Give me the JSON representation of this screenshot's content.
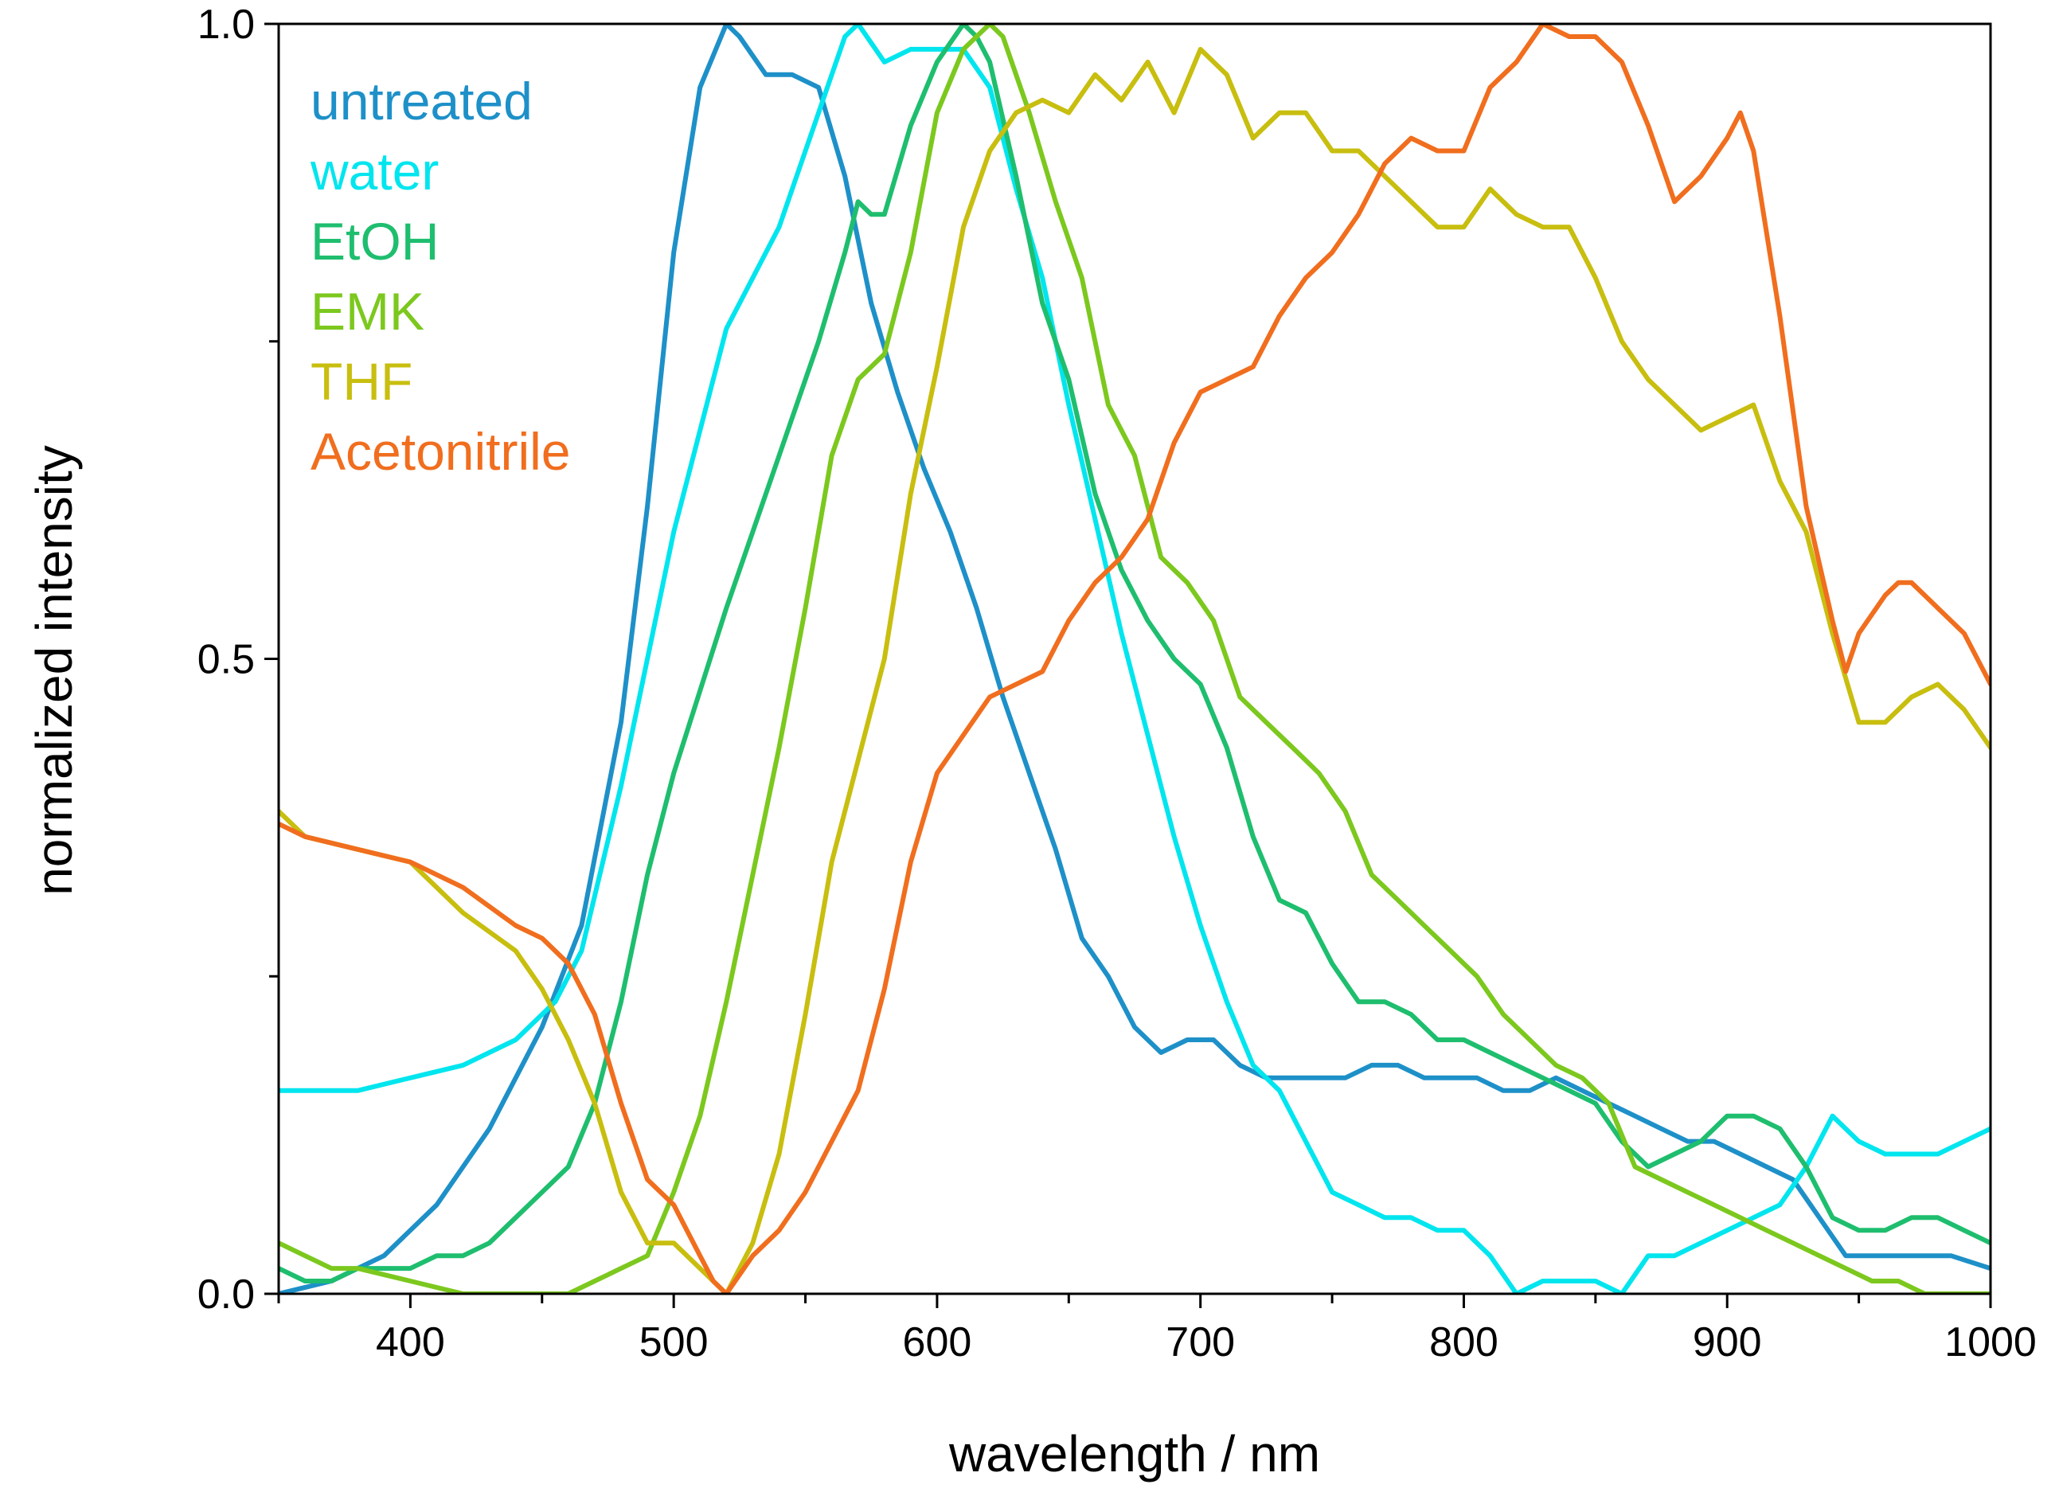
{
  "chart_data": {
    "type": "line",
    "title": "",
    "xlabel": "wavelength / nm",
    "ylabel": "normalized intensity",
    "xlim": [
      350,
      1000
    ],
    "ylim": [
      0.0,
      1.0
    ],
    "x_ticks": [
      400,
      500,
      600,
      700,
      800,
      900,
      1000
    ],
    "x_minor_ticks": [
      350,
      450,
      550,
      650,
      750,
      850,
      950
    ],
    "y_ticks": [
      0.0,
      0.5,
      1.0
    ],
    "y_tick_labels": [
      "0.0",
      "0.5",
      "1.0"
    ],
    "y_minor_ticks": [
      0.25,
      0.75
    ],
    "grid": false,
    "legend_position": "top-left",
    "series": [
      {
        "name": "untreated",
        "color": "#1E90C8",
        "x": [
          350,
          370,
          390,
          410,
          430,
          450,
          465,
          480,
          490,
          500,
          510,
          520,
          525,
          535,
          545,
          555,
          565,
          575,
          585,
          595,
          605,
          615,
          625,
          635,
          645,
          655,
          665,
          675,
          685,
          695,
          705,
          715,
          725,
          735,
          745,
          755,
          765,
          775,
          785,
          795,
          805,
          815,
          825,
          835,
          845,
          855,
          865,
          875,
          885,
          895,
          905,
          915,
          925,
          935,
          945,
          955,
          965,
          975,
          985,
          1000
        ],
        "values": [
          0.0,
          0.01,
          0.03,
          0.07,
          0.13,
          0.21,
          0.29,
          0.45,
          0.62,
          0.82,
          0.95,
          1.0,
          0.99,
          0.96,
          0.96,
          0.95,
          0.88,
          0.78,
          0.71,
          0.65,
          0.6,
          0.54,
          0.47,
          0.41,
          0.35,
          0.28,
          0.25,
          0.21,
          0.19,
          0.2,
          0.2,
          0.18,
          0.17,
          0.17,
          0.17,
          0.17,
          0.18,
          0.18,
          0.17,
          0.17,
          0.17,
          0.16,
          0.16,
          0.17,
          0.16,
          0.15,
          0.14,
          0.13,
          0.12,
          0.12,
          0.11,
          0.1,
          0.09,
          0.06,
          0.03,
          0.03,
          0.03,
          0.03,
          0.03,
          0.02
        ]
      },
      {
        "name": "water",
        "color": "#00E5EE",
        "x": [
          350,
          360,
          370,
          380,
          400,
          420,
          440,
          455,
          465,
          480,
          500,
          520,
          540,
          555,
          565,
          570,
          580,
          590,
          600,
          610,
          620,
          630,
          640,
          650,
          660,
          670,
          680,
          690,
          700,
          710,
          720,
          730,
          740,
          750,
          760,
          770,
          780,
          790,
          800,
          810,
          820,
          830,
          840,
          850,
          860,
          870,
          880,
          890,
          900,
          910,
          920,
          930,
          940,
          950,
          960,
          970,
          980,
          990,
          1000
        ],
        "values": [
          0.16,
          0.16,
          0.16,
          0.16,
          0.17,
          0.18,
          0.2,
          0.23,
          0.27,
          0.4,
          0.6,
          0.76,
          0.84,
          0.93,
          0.99,
          1.0,
          0.97,
          0.98,
          0.98,
          0.98,
          0.95,
          0.87,
          0.8,
          0.7,
          0.61,
          0.52,
          0.44,
          0.36,
          0.29,
          0.23,
          0.18,
          0.16,
          0.12,
          0.08,
          0.07,
          0.06,
          0.06,
          0.05,
          0.05,
          0.03,
          0.0,
          0.01,
          0.01,
          0.01,
          0.0,
          0.03,
          0.03,
          0.04,
          0.05,
          0.06,
          0.07,
          0.1,
          0.14,
          0.12,
          0.11,
          0.11,
          0.11,
          0.12,
          0.13
        ]
      },
      {
        "name": "EtOH",
        "color": "#1EBE6E",
        "x": [
          350,
          360,
          370,
          380,
          390,
          400,
          410,
          420,
          430,
          440,
          450,
          460,
          470,
          480,
          490,
          500,
          520,
          540,
          555,
          565,
          570,
          575,
          580,
          590,
          600,
          610,
          615,
          620,
          630,
          640,
          650,
          660,
          670,
          680,
          690,
          700,
          710,
          720,
          730,
          740,
          750,
          760,
          770,
          780,
          790,
          800,
          810,
          820,
          830,
          840,
          850,
          860,
          870,
          880,
          890,
          900,
          910,
          920,
          930,
          940,
          950,
          960,
          970,
          980,
          990,
          1000
        ],
        "values": [
          0.02,
          0.01,
          0.01,
          0.02,
          0.02,
          0.02,
          0.03,
          0.03,
          0.04,
          0.06,
          0.08,
          0.1,
          0.15,
          0.23,
          0.33,
          0.41,
          0.54,
          0.66,
          0.75,
          0.82,
          0.86,
          0.85,
          0.85,
          0.92,
          0.97,
          1.0,
          0.99,
          0.97,
          0.88,
          0.78,
          0.72,
          0.63,
          0.57,
          0.53,
          0.5,
          0.48,
          0.43,
          0.36,
          0.31,
          0.3,
          0.26,
          0.23,
          0.23,
          0.22,
          0.2,
          0.2,
          0.19,
          0.18,
          0.17,
          0.16,
          0.15,
          0.12,
          0.1,
          0.11,
          0.12,
          0.14,
          0.14,
          0.13,
          0.1,
          0.06,
          0.05,
          0.05,
          0.06,
          0.06,
          0.05,
          0.04
        ]
      },
      {
        "name": "EMK",
        "color": "#7CC81E",
        "x": [
          350,
          360,
          370,
          380,
          400,
          420,
          440,
          460,
          470,
          480,
          490,
          500,
          510,
          520,
          530,
          540,
          550,
          560,
          570,
          580,
          590,
          600,
          610,
          620,
          625,
          635,
          645,
          655,
          665,
          675,
          685,
          695,
          705,
          715,
          725,
          735,
          745,
          755,
          765,
          775,
          785,
          795,
          805,
          815,
          825,
          835,
          845,
          855,
          865,
          875,
          885,
          895,
          905,
          915,
          925,
          935,
          945,
          955,
          965,
          975,
          985,
          1000
        ],
        "values": [
          0.04,
          0.03,
          0.02,
          0.02,
          0.01,
          0.0,
          0.0,
          0.0,
          0.01,
          0.02,
          0.03,
          0.08,
          0.14,
          0.23,
          0.33,
          0.43,
          0.54,
          0.66,
          0.72,
          0.74,
          0.82,
          0.93,
          0.98,
          1.0,
          0.99,
          0.93,
          0.86,
          0.8,
          0.7,
          0.66,
          0.58,
          0.56,
          0.53,
          0.47,
          0.45,
          0.43,
          0.41,
          0.38,
          0.33,
          0.31,
          0.29,
          0.27,
          0.25,
          0.22,
          0.2,
          0.18,
          0.17,
          0.15,
          0.1,
          0.09,
          0.08,
          0.07,
          0.06,
          0.05,
          0.04,
          0.03,
          0.02,
          0.01,
          0.01,
          0.0,
          0.0,
          0.0
        ]
      },
      {
        "name": "THF",
        "color": "#C8BE0F",
        "x": [
          350,
          360,
          380,
          400,
          420,
          440,
          450,
          460,
          470,
          480,
          490,
          500,
          510,
          520,
          530,
          540,
          550,
          560,
          570,
          580,
          590,
          600,
          610,
          620,
          630,
          640,
          650,
          660,
          670,
          680,
          690,
          700,
          710,
          720,
          730,
          740,
          750,
          760,
          770,
          780,
          790,
          800,
          810,
          820,
          830,
          840,
          850,
          860,
          870,
          880,
          890,
          900,
          910,
          920,
          930,
          940,
          950,
          960,
          970,
          980,
          990,
          1000
        ],
        "values": [
          0.38,
          0.36,
          0.35,
          0.34,
          0.3,
          0.27,
          0.24,
          0.2,
          0.15,
          0.08,
          0.04,
          0.04,
          0.02,
          0.0,
          0.04,
          0.11,
          0.22,
          0.34,
          0.42,
          0.5,
          0.63,
          0.73,
          0.84,
          0.9,
          0.93,
          0.94,
          0.93,
          0.96,
          0.94,
          0.97,
          0.93,
          0.98,
          0.96,
          0.91,
          0.93,
          0.93,
          0.9,
          0.9,
          0.88,
          0.86,
          0.84,
          0.84,
          0.87,
          0.85,
          0.84,
          0.84,
          0.8,
          0.75,
          0.72,
          0.7,
          0.68,
          0.69,
          0.7,
          0.64,
          0.6,
          0.52,
          0.45,
          0.45,
          0.47,
          0.48,
          0.46,
          0.43
        ]
      },
      {
        "name": "Acetonitrile",
        "color": "#F06E1E",
        "x": [
          350,
          360,
          380,
          400,
          420,
          440,
          450,
          460,
          470,
          480,
          490,
          500,
          510,
          515,
          520,
          530,
          540,
          550,
          560,
          570,
          580,
          590,
          600,
          610,
          620,
          630,
          640,
          650,
          660,
          670,
          680,
          690,
          700,
          710,
          720,
          730,
          740,
          750,
          760,
          770,
          780,
          790,
          800,
          810,
          820,
          830,
          840,
          850,
          860,
          870,
          880,
          890,
          900,
          905,
          910,
          920,
          930,
          940,
          945,
          950,
          960,
          965,
          970,
          980,
          990,
          1000
        ],
        "values": [
          0.37,
          0.36,
          0.35,
          0.34,
          0.32,
          0.29,
          0.28,
          0.26,
          0.22,
          0.15,
          0.09,
          0.07,
          0.03,
          0.01,
          0.0,
          0.03,
          0.05,
          0.08,
          0.12,
          0.16,
          0.24,
          0.34,
          0.41,
          0.44,
          0.47,
          0.48,
          0.49,
          0.53,
          0.56,
          0.58,
          0.61,
          0.67,
          0.71,
          0.72,
          0.73,
          0.77,
          0.8,
          0.82,
          0.85,
          0.89,
          0.91,
          0.9,
          0.9,
          0.95,
          0.97,
          1.0,
          0.99,
          0.99,
          0.97,
          0.92,
          0.86,
          0.88,
          0.91,
          0.93,
          0.9,
          0.77,
          0.62,
          0.53,
          0.49,
          0.52,
          0.55,
          0.56,
          0.56,
          0.54,
          0.52,
          0.48
        ]
      }
    ]
  }
}
